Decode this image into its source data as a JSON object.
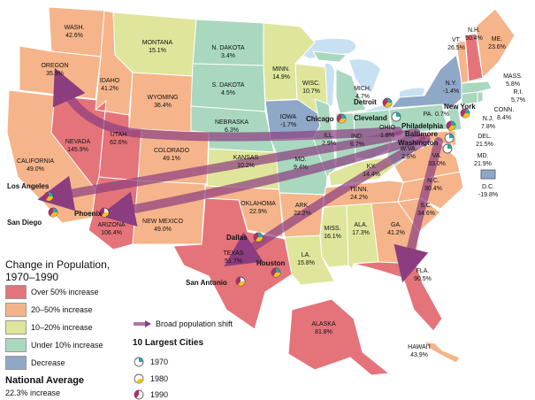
{
  "colors": {
    "over50": "#e4747a",
    "b20_50": "#f5b48a",
    "b10_20": "#dfe59a",
    "under10": "#a9d8bf",
    "decrease": "#8fa8c8",
    "water": "#c8e1f2",
    "arrow": "#8b3d80"
  },
  "states": [
    {
      "name": "WASH.",
      "value": "42.6%"
    },
    {
      "name": "OREGON",
      "value": "35.9%"
    },
    {
      "name": "CALIFORNIA",
      "value": "49.0%"
    },
    {
      "name": "NEVADA",
      "value": "145.9%"
    },
    {
      "name": "IDAHO",
      "value": "41.2%"
    },
    {
      "name": "MONTANA",
      "value": "15.1%"
    },
    {
      "name": "WYOMING",
      "value": "36.4%"
    },
    {
      "name": "UTAH",
      "value": "62.6%"
    },
    {
      "name": "ARIZONA",
      "value": "106.4%"
    },
    {
      "name": "COLORADO",
      "value": "49.1%"
    },
    {
      "name": "NEW MEXICO",
      "value": "49.0%"
    },
    {
      "name": "N. DAKOTA",
      "value": "3.4%"
    },
    {
      "name": "S. DAKOTA",
      "value": "4.5%"
    },
    {
      "name": "NEBRASKA",
      "value": "6.3%"
    },
    {
      "name": "KANSAS",
      "value": "10.2%"
    },
    {
      "name": "OKLAHOMA",
      "value": "22.9%"
    },
    {
      "name": "TEXAS",
      "value": "51.7%"
    },
    {
      "name": "MINN.",
      "value": "14.9%"
    },
    {
      "name": "IOWA",
      "value": "-1.7%"
    },
    {
      "name": "MO.",
      "value": "9.4%"
    },
    {
      "name": "ARK.",
      "value": "22.2%"
    },
    {
      "name": "LA.",
      "value": "15.8%"
    },
    {
      "name": "WISC.",
      "value": "10.7%"
    },
    {
      "name": "ILL.",
      "value": "2.9%"
    },
    {
      "name": "MICH.",
      "value": "4.7%"
    },
    {
      "name": "IND.",
      "value": "6.7%"
    },
    {
      "name": "OHIO",
      "value": "1.8%"
    },
    {
      "name": "KY.",
      "value": "14.4%"
    },
    {
      "name": "TENN.",
      "value": "24.2%"
    },
    {
      "name": "MISS.",
      "value": "16.1%"
    },
    {
      "name": "ALA.",
      "value": "17.3%"
    },
    {
      "name": "GA.",
      "value": "41.2%"
    },
    {
      "name": "FLA.",
      "value": "90.5%"
    },
    {
      "name": "S.C.",
      "value": "34.6%"
    },
    {
      "name": "N.C.",
      "value": "30.4%"
    },
    {
      "name": "VA.",
      "value": "33.0%"
    },
    {
      "name": "W.VA.",
      "value": "2.8%"
    },
    {
      "name": "PA.",
      "value": "0.7%"
    },
    {
      "name": "N.Y.",
      "value": "-1.4%"
    },
    {
      "name": "VT.",
      "value": "26.5%"
    },
    {
      "name": "N.H.",
      "value": "50.4%"
    },
    {
      "name": "ME.",
      "value": "23.6%"
    },
    {
      "name": "MASS.",
      "value": "5.8%"
    },
    {
      "name": "R.I.",
      "value": "5.7%"
    },
    {
      "name": "CONN.",
      "value": "8.4%"
    },
    {
      "name": "N.J.",
      "value": "7.8%"
    },
    {
      "name": "DEL.",
      "value": "21.5%"
    },
    {
      "name": "MD.",
      "value": "21.9%"
    },
    {
      "name": "D.C.",
      "value": "-19.8%"
    },
    {
      "name": "ALASKA",
      "value": "81.8%"
    },
    {
      "name": "HAWAI'I",
      "value": "43.9%"
    }
  ],
  "cities": [
    "Los Angeles",
    "San Diego",
    "Phoenix",
    "Dallas",
    "Houston",
    "San Antonio",
    "Chicago",
    "Detroit",
    "Cleveland",
    "Philadelphia",
    "Baltimore",
    "Washington",
    "New York"
  ],
  "legend": {
    "title_line1": "Change in Population,",
    "title_line2": "1970–1990",
    "items": [
      "Over 50% increase",
      "20–50% increase",
      "10–20% increase",
      "Under 10% increase",
      "Decrease"
    ],
    "national_title": "National Average",
    "national_value": "22.3% increase",
    "shift_label": "Broad population shift",
    "cities_title": "10 Largest Cities",
    "years": [
      "1970",
      "1980",
      "1990"
    ]
  }
}
